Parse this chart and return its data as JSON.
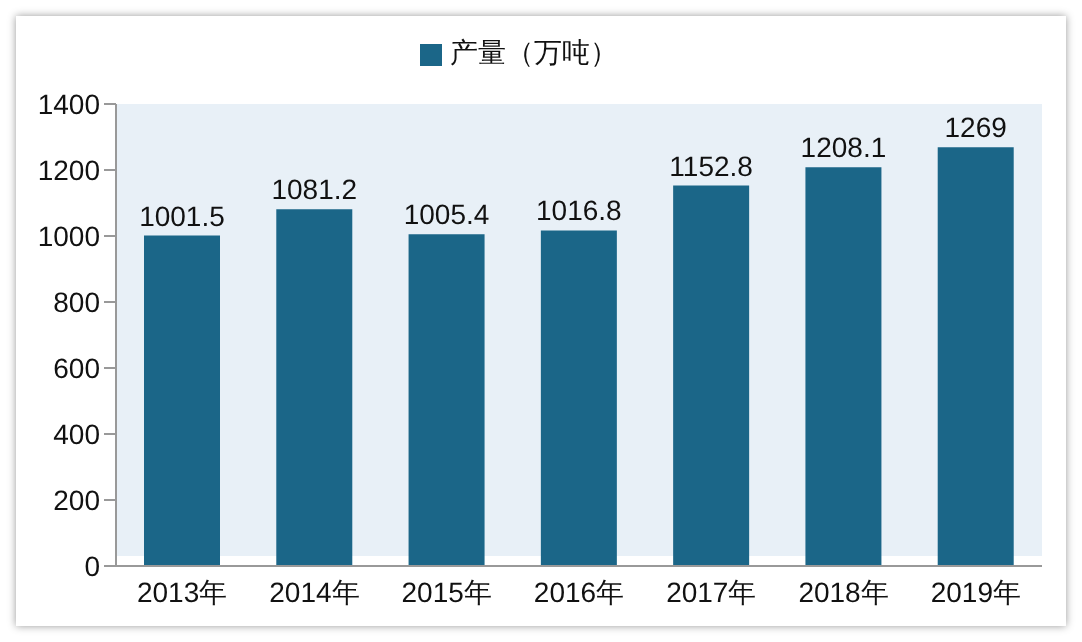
{
  "chart_data": {
    "type": "bar",
    "categories": [
      "2013年",
      "2014年",
      "2015年",
      "2016年",
      "2017年",
      "2018年",
      "2019年"
    ],
    "series": [
      {
        "name": "产量（万吨）",
        "color": "#1b6688",
        "values": [
          1001.5,
          1081.2,
          1005.4,
          1016.8,
          1152.8,
          1208.1,
          1269
        ]
      }
    ],
    "ylim": [
      0,
      1400
    ],
    "yticks": [
      0,
      200,
      400,
      600,
      800,
      1000,
      1200,
      1400
    ],
    "data_labels": true,
    "legend": "top"
  }
}
